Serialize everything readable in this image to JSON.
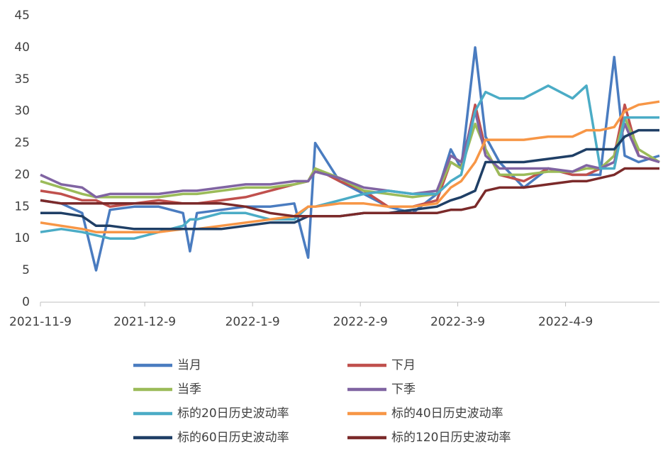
{
  "chart_data": {
    "type": "line",
    "x": [
      "2021-11-9",
      "2021-11-15",
      "2021-11-21",
      "2021-11-25",
      "2021-11-29",
      "2021-12-6",
      "2021-12-13",
      "2021-12-20",
      "2021-12-22",
      "2021-12-24",
      "2021-12-31",
      "2022-1-7",
      "2022-1-14",
      "2022-1-21",
      "2022-1-25",
      "2022-1-27",
      "2022-2-3",
      "2022-2-10",
      "2022-2-17",
      "2022-2-24",
      "2022-3-3",
      "2022-3-7",
      "2022-3-10",
      "2022-3-14",
      "2022-3-17",
      "2022-3-21",
      "2022-3-28",
      "2022-4-4",
      "2022-4-11",
      "2022-4-15",
      "2022-4-19",
      "2022-4-23",
      "2022-4-26",
      "2022-4-30",
      "2022-5-6"
    ],
    "xlim": [
      "2021-11-9",
      "2022-5-6"
    ],
    "xticks": [
      "2021-11-9",
      "2021-12-9",
      "2022-1-9",
      "2022-2-9",
      "2022-3-9",
      "2022-4-9"
    ],
    "ylim": [
      0,
      45
    ],
    "yticks": [
      0,
      5,
      10,
      15,
      20,
      25,
      30,
      35,
      40,
      45
    ],
    "series": [
      {
        "name": "当月",
        "color": "#4a7cc0",
        "values": [
          16,
          15.5,
          14,
          5,
          14.5,
          15,
          15,
          14,
          8,
          14,
          14.5,
          15,
          15,
          15.5,
          7,
          25,
          19,
          17,
          15,
          14,
          17,
          24,
          21,
          40,
          26,
          22,
          18,
          21,
          20,
          20,
          20,
          38.5,
          23,
          22,
          23
        ]
      },
      {
        "name": "下月",
        "color": "#c0504d",
        "values": [
          17.5,
          17,
          16,
          16,
          15,
          15.5,
          16,
          15.5,
          15.5,
          15.5,
          16,
          16.5,
          17.5,
          18.5,
          19,
          21,
          19,
          17.5,
          15,
          15,
          16,
          22,
          21,
          31,
          24,
          20,
          19,
          21,
          20,
          20,
          21,
          23,
          31,
          23,
          22
        ]
      },
      {
        "name": "当季",
        "color": "#9bbb59",
        "values": [
          19,
          18,
          17,
          16.5,
          16.5,
          16.5,
          16.5,
          17,
          17,
          17,
          17.5,
          18,
          18,
          18.5,
          19,
          21,
          19.5,
          17.5,
          17,
          16.5,
          17,
          22,
          21,
          28,
          24,
          20,
          20,
          20.5,
          20.5,
          21,
          21,
          23,
          29,
          24,
          22
        ]
      },
      {
        "name": "下季",
        "color": "#8064a2",
        "values": [
          20,
          18.5,
          18,
          16.5,
          17,
          17,
          17,
          17.5,
          17.5,
          17.5,
          18,
          18.5,
          18.5,
          19,
          19,
          20.5,
          19.5,
          18,
          17.5,
          17,
          17.5,
          23,
          22,
          30,
          23,
          21,
          21,
          21,
          20.5,
          21.5,
          21,
          22,
          28,
          23,
          22
        ]
      },
      {
        "name": "标的20日历史波动率",
        "color": "#4bacc6",
        "values": [
          11,
          11.5,
          11,
          10.5,
          10,
          10,
          11,
          12,
          13,
          13,
          14,
          14,
          13,
          13,
          15,
          15,
          16,
          17,
          17.5,
          17,
          17,
          19,
          20,
          30,
          33,
          32,
          32,
          34,
          32,
          34,
          21,
          21,
          29,
          29,
          29
        ]
      },
      {
        "name": "标的40日历史波动率",
        "color": "#f79646",
        "values": [
          12.5,
          12,
          11.5,
          11,
          11,
          11,
          11,
          11.5,
          11.5,
          11.5,
          12,
          12.5,
          13,
          13.5,
          15,
          15,
          15.5,
          15.5,
          15,
          15,
          15.5,
          18,
          19,
          22,
          25.5,
          25.5,
          25.5,
          26,
          26,
          27,
          27,
          27.5,
          30,
          31,
          31.5
        ]
      },
      {
        "name": "标的60日历史波动率",
        "color": "#1f3f66",
        "values": [
          14,
          14,
          13.5,
          12,
          12,
          11.5,
          11.5,
          11.5,
          11.5,
          11.5,
          11.5,
          12,
          12.5,
          12.5,
          13.5,
          13.5,
          13.5,
          14,
          14,
          14.5,
          15,
          16,
          16.5,
          17.5,
          22,
          22,
          22,
          22.5,
          23,
          24,
          24,
          24,
          26,
          27,
          27
        ]
      },
      {
        "name": "标的120日历史波动率",
        "color": "#7b2a2a",
        "values": [
          16,
          15.5,
          15.5,
          15.5,
          15.5,
          15.5,
          15.5,
          15.5,
          15.5,
          15.5,
          15.5,
          15,
          14,
          13.5,
          13.5,
          13.5,
          13.5,
          14,
          14,
          14,
          14,
          14.5,
          14.5,
          15,
          17.5,
          18,
          18,
          18.5,
          19,
          19,
          19.5,
          20,
          21,
          21,
          21
        ]
      }
    ]
  }
}
